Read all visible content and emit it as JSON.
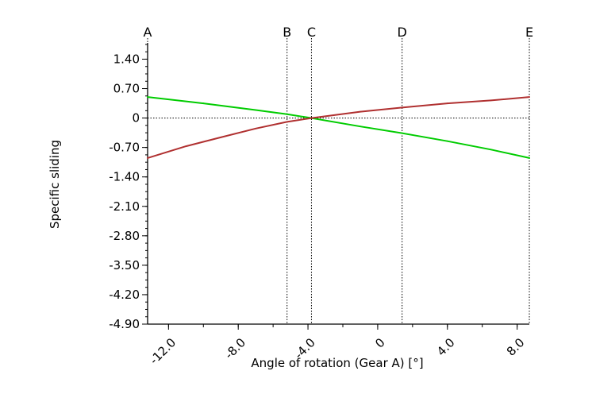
{
  "chart_data": {
    "type": "line",
    "xlabel": "Angle of rotation (Gear A) [°]",
    "ylabel": "Specific sliding",
    "xlim": [
      -13.2,
      8.7
    ],
    "ylim": [
      -4.9,
      1.9
    ],
    "x_ticks": [
      -12.0,
      -8.0,
      -4.0,
      0,
      4.0,
      8.0
    ],
    "x_tick_labels": [
      "-12.0",
      "-8.0",
      "-4.0",
      "0",
      "4.0",
      "8.0"
    ],
    "y_ticks": [
      1.4,
      0.7,
      0,
      -0.7,
      -1.4,
      -2.1,
      -2.8,
      -3.5,
      -4.2,
      -4.9
    ],
    "y_tick_labels": [
      "1.40",
      "0.70",
      "0",
      "-0.70",
      "-1.40",
      "-2.10",
      "-2.80",
      "-3.50",
      "-4.20",
      "-4.90"
    ],
    "grid": false,
    "reference_lines": [
      {
        "label": "A",
        "x": -13.2
      },
      {
        "label": "B",
        "x": -5.2
      },
      {
        "label": "C",
        "x": -3.8
      },
      {
        "label": "D",
        "x": 1.4
      },
      {
        "label": "E",
        "x": 8.7
      }
    ],
    "zero_line": 0,
    "series": [
      {
        "color": "#00cc00",
        "x": [
          -13.2,
          -10.0,
          -7.0,
          -5.2,
          -3.8,
          -1.0,
          1.4,
          4.0,
          6.5,
          8.7
        ],
        "y": [
          0.5,
          0.35,
          0.19,
          0.09,
          0.0,
          -0.2,
          -0.36,
          -0.55,
          -0.75,
          -0.95
        ]
      },
      {
        "color": "#b03030",
        "x": [
          -13.2,
          -11.0,
          -9.0,
          -7.0,
          -5.2,
          -3.8,
          -1.0,
          1.4,
          4.0,
          6.5,
          8.7
        ],
        "y": [
          -0.95,
          -0.67,
          -0.46,
          -0.25,
          -0.09,
          0.0,
          0.15,
          0.25,
          0.35,
          0.42,
          0.5
        ]
      }
    ]
  }
}
